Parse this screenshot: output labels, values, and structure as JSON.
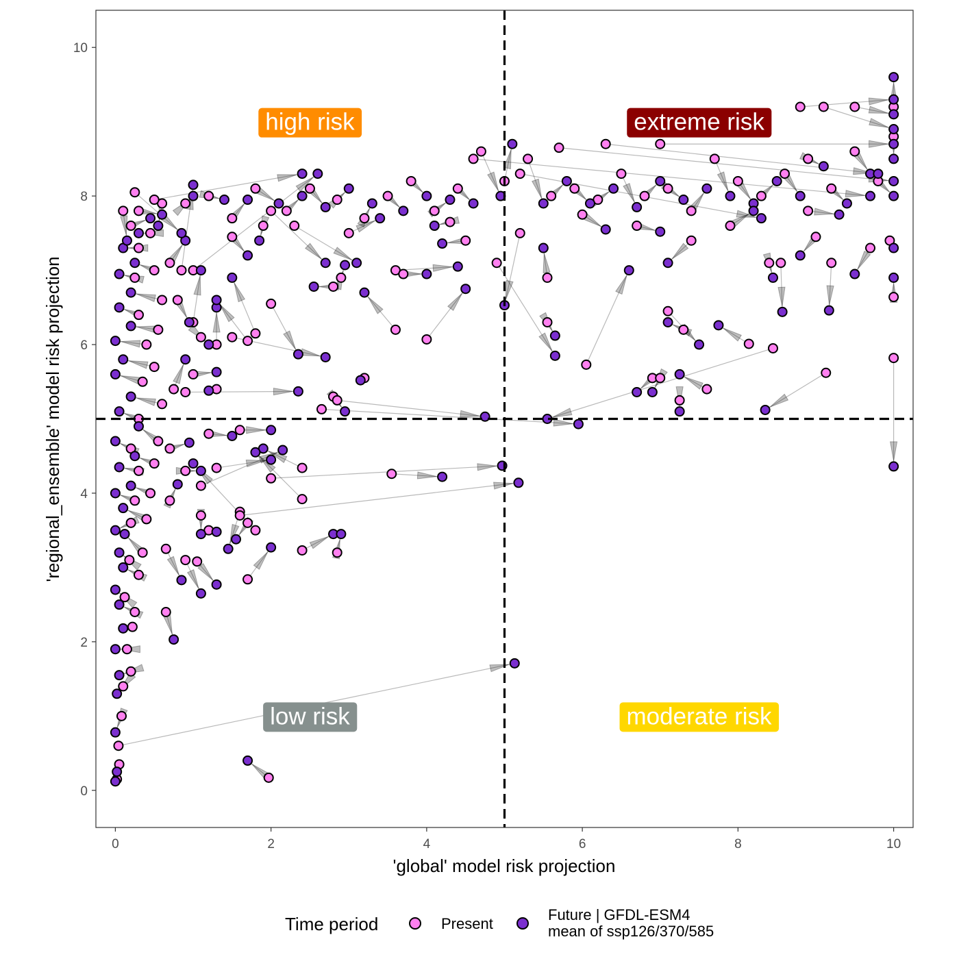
{
  "chart_data": {
    "type": "scatter",
    "xlabel": "'global' model risk projection",
    "ylabel": "'regional_ensemble' model risk projection",
    "xlim": [
      -0.25,
      10.25
    ],
    "ylim": [
      -0.5,
      10.5
    ],
    "x_ticks": [
      "0",
      "2",
      "4",
      "6",
      "8",
      "10"
    ],
    "y_ticks": [
      "0",
      "2",
      "4",
      "6",
      "8",
      "10"
    ],
    "grid": false,
    "reference_lines": {
      "x": 5,
      "y": 5,
      "style": "dashed"
    },
    "legend": {
      "title": "Time period",
      "position": "bottom",
      "entries": [
        {
          "label": "Present",
          "color": "#FF80F0"
        },
        {
          "label_line1": "Future | GFDL-ESM4",
          "label_line2": "mean of ssp126/370/585",
          "color": "#7B2FCF"
        }
      ]
    },
    "quadrant_labels": [
      {
        "text": "high risk",
        "x": 2.5,
        "y": 9.0,
        "color": "#FF8C00"
      },
      {
        "text": "extreme risk",
        "x": 7.5,
        "y": 9.0,
        "color": "#8B0000"
      },
      {
        "text": "low risk",
        "x": 2.5,
        "y": 1.0,
        "color": "#86908E"
      },
      {
        "text": "moderate risk",
        "x": 7.5,
        "y": 1.0,
        "color": "#FFD700"
      }
    ],
    "series": [
      {
        "name": "Present",
        "color": "#FF80F0"
      },
      {
        "name": "Future | GFDL-ESM4 mean of ssp126/370/585",
        "color": "#7B2FCF"
      }
    ],
    "pairs_columns": [
      "present_x",
      "present_y",
      "future_x",
      "future_y"
    ],
    "pairs": [
      [
        0.02,
        0.15,
        0.0,
        0.12
      ],
      [
        0.05,
        0.35,
        0.02,
        0.25
      ],
      [
        0.04,
        0.6,
        5.13,
        1.71
      ],
      [
        0.08,
        1.0,
        0.0,
        0.78
      ],
      [
        0.1,
        1.4,
        0.02,
        1.3
      ],
      [
        0.2,
        1.6,
        0.05,
        1.55
      ],
      [
        0.15,
        1.9,
        0.0,
        1.9
      ],
      [
        0.22,
        2.2,
        0.1,
        2.18
      ],
      [
        0.25,
        2.4,
        0.05,
        2.5
      ],
      [
        0.12,
        2.6,
        0.0,
        2.7
      ],
      [
        0.3,
        2.9,
        0.1,
        3.0
      ],
      [
        0.18,
        3.1,
        0.05,
        3.2
      ],
      [
        0.35,
        3.2,
        0.12,
        3.45
      ],
      [
        0.2,
        3.6,
        0.0,
        3.5
      ],
      [
        0.4,
        3.65,
        0.1,
        3.8
      ],
      [
        0.25,
        3.9,
        0.0,
        4.0
      ],
      [
        0.45,
        4.0,
        0.2,
        4.1
      ],
      [
        0.3,
        4.3,
        0.05,
        4.35
      ],
      [
        0.5,
        4.4,
        0.25,
        4.5
      ],
      [
        0.2,
        4.6,
        0.0,
        4.7
      ],
      [
        0.55,
        4.7,
        0.3,
        4.9
      ],
      [
        0.3,
        5.0,
        0.05,
        5.1
      ],
      [
        0.6,
        5.2,
        0.2,
        5.3
      ],
      [
        0.35,
        5.5,
        0.0,
        5.6
      ],
      [
        0.5,
        5.7,
        0.1,
        5.8
      ],
      [
        0.4,
        6.0,
        0.0,
        6.05
      ],
      [
        0.55,
        6.2,
        0.2,
        6.25
      ],
      [
        0.3,
        6.4,
        0.05,
        6.5
      ],
      [
        0.6,
        6.6,
        0.2,
        6.7
      ],
      [
        0.25,
        6.9,
        0.05,
        6.95
      ],
      [
        0.5,
        7.0,
        0.25,
        7.1
      ],
      [
        0.3,
        7.3,
        0.1,
        7.3
      ],
      [
        0.45,
        7.5,
        0.3,
        7.5
      ],
      [
        0.2,
        7.6,
        0.45,
        7.7
      ],
      [
        0.1,
        7.8,
        0.15,
        7.4
      ],
      [
        0.3,
        7.8,
        0.6,
        7.75
      ],
      [
        0.6,
        7.9,
        0.55,
        7.6
      ],
      [
        0.7,
        7.1,
        0.9,
        7.4
      ],
      [
        0.85,
        7.0,
        1.0,
        8.15
      ],
      [
        1.0,
        6.3,
        1.1,
        7.0
      ],
      [
        0.8,
        6.6,
        0.95,
        6.3
      ],
      [
        1.1,
        6.1,
        1.2,
        6.0
      ],
      [
        0.75,
        5.4,
        0.9,
        5.8
      ],
      [
        1.0,
        5.6,
        1.3,
        5.63
      ],
      [
        1.3,
        6.0,
        1.3,
        6.5
      ],
      [
        0.7,
        4.6,
        0.95,
        4.68
      ],
      [
        0.9,
        4.3,
        1.1,
        4.3
      ],
      [
        0.7,
        3.9,
        0.8,
        4.12
      ],
      [
        1.1,
        3.7,
        1.1,
        3.45
      ],
      [
        0.65,
        3.25,
        0.85,
        2.83
      ],
      [
        1.2,
        3.5,
        1.3,
        3.48
      ],
      [
        0.9,
        3.1,
        1.1,
        2.65
      ],
      [
        0.65,
        2.4,
        0.75,
        2.03
      ],
      [
        1.05,
        3.08,
        1.3,
        2.77
      ],
      [
        1.6,
        3.75,
        1.45,
        3.25
      ],
      [
        1.7,
        3.6,
        1.55,
        3.38
      ],
      [
        1.8,
        3.5,
        1.0,
        4.4
      ],
      [
        1.7,
        2.84,
        2.0,
        3.27
      ],
      [
        1.97,
        0.17,
        1.7,
        0.4
      ],
      [
        2.4,
        3.23,
        2.8,
        3.45
      ],
      [
        2.85,
        3.2,
        2.9,
        3.45
      ],
      [
        1.3,
        4.34,
        2.0,
        4.45
      ],
      [
        2.4,
        4.34,
        1.9,
        4.6
      ],
      [
        2.4,
        3.92,
        1.8,
        4.55
      ],
      [
        1.1,
        4.1,
        2.15,
        4.58
      ],
      [
        1.2,
        4.8,
        1.5,
        4.77
      ],
      [
        1.6,
        4.85,
        2.0,
        4.85
      ],
      [
        1.3,
        5.4,
        1.2,
        5.38
      ],
      [
        0.9,
        5.36,
        2.35,
        5.37
      ],
      [
        2.0,
        6.55,
        2.35,
        5.87
      ],
      [
        1.5,
        6.1,
        2.7,
        5.83
      ],
      [
        2.8,
        5.3,
        2.95,
        5.1
      ],
      [
        3.2,
        5.55,
        3.15,
        5.52
      ],
      [
        2.85,
        5.25,
        4.75,
        5.03
      ],
      [
        2.65,
        5.13,
        5.95,
        4.93
      ],
      [
        3.55,
        4.26,
        4.2,
        4.22
      ],
      [
        2.0,
        4.2,
        4.97,
        4.37
      ],
      [
        1.6,
        3.7,
        5.18,
        4.14
      ],
      [
        1.8,
        6.15,
        1.5,
        6.9
      ],
      [
        1.7,
        6.05,
        1.3,
        6.6
      ],
      [
        1.9,
        7.6,
        1.85,
        7.4
      ],
      [
        2.0,
        7.8,
        2.7,
        7.1
      ],
      [
        1.5,
        7.45,
        1.7,
        7.2
      ],
      [
        2.9,
        6.9,
        2.95,
        7.07
      ],
      [
        2.8,
        6.78,
        2.55,
        6.78
      ],
      [
        3.6,
        6.2,
        3.2,
        6.7
      ],
      [
        4.0,
        6.07,
        4.5,
        6.75
      ],
      [
        3.6,
        7.0,
        4.4,
        7.05
      ],
      [
        4.5,
        7.4,
        4.2,
        7.36
      ],
      [
        3.7,
        6.95,
        4.0,
        6.95
      ],
      [
        5.55,
        6.9,
        5.5,
        7.3
      ],
      [
        5.55,
        6.3,
        5.65,
        6.12
      ],
      [
        4.9,
        7.1,
        5.65,
        5.85
      ],
      [
        5.2,
        7.5,
        5.0,
        6.53
      ],
      [
        6.05,
        5.73,
        6.6,
        7.0
      ],
      [
        6.9,
        5.55,
        6.7,
        5.36
      ],
      [
        7.0,
        5.55,
        6.9,
        5.36
      ],
      [
        7.25,
        5.25,
        7.25,
        5.1
      ],
      [
        7.6,
        5.4,
        7.25,
        5.6
      ],
      [
        7.3,
        6.2,
        7.1,
        6.3
      ],
      [
        7.1,
        6.45,
        7.5,
        6.0
      ],
      [
        8.14,
        6.01,
        7.75,
        6.26
      ],
      [
        8.45,
        5.95,
        5.55,
        5.0
      ],
      [
        9.13,
        5.62,
        8.35,
        5.12
      ],
      [
        10,
        5.82,
        10,
        4.36
      ],
      [
        10,
        6.64,
        10,
        6.9
      ],
      [
        9.2,
        7.1,
        9.17,
        6.46
      ],
      [
        8.55,
        7.1,
        8.57,
        6.44
      ],
      [
        8.4,
        7.1,
        8.45,
        6.9
      ],
      [
        6.7,
        7.6,
        7.0,
        7.52
      ],
      [
        7.4,
        7.4,
        7.1,
        7.1
      ],
      [
        9.0,
        7.45,
        8.8,
        7.2
      ],
      [
        9.7,
        7.3,
        9.5,
        6.95
      ],
      [
        9.95,
        7.4,
        10,
        7.3
      ],
      [
        0.9,
        7.9,
        1.0,
        8.0
      ],
      [
        1.2,
        8.0,
        1.4,
        7.95
      ],
      [
        1.5,
        7.7,
        1.7,
        7.95
      ],
      [
        1.8,
        8.1,
        2.1,
        7.9
      ],
      [
        2.2,
        7.8,
        2.4,
        8.0
      ],
      [
        2.5,
        8.1,
        2.7,
        7.85
      ],
      [
        2.85,
        7.95,
        3.0,
        8.1
      ],
      [
        3.2,
        7.7,
        3.3,
        7.9
      ],
      [
        3.5,
        8.0,
        3.7,
        7.8
      ],
      [
        3.8,
        8.2,
        4.0,
        8.0
      ],
      [
        4.1,
        7.8,
        4.3,
        7.95
      ],
      [
        4.4,
        8.1,
        4.6,
        7.9
      ],
      [
        4.7,
        8.6,
        4.95,
        8.0
      ],
      [
        5.0,
        8.2,
        5.1,
        8.7
      ],
      [
        5.3,
        8.5,
        5.5,
        7.9
      ],
      [
        5.6,
        8.0,
        5.8,
        8.2
      ],
      [
        5.9,
        8.1,
        6.1,
        7.9
      ],
      [
        6.2,
        7.95,
        6.4,
        8.1
      ],
      [
        6.5,
        8.3,
        6.7,
        7.85
      ],
      [
        6.8,
        8.0,
        7.0,
        8.2
      ],
      [
        7.1,
        8.1,
        7.3,
        7.95
      ],
      [
        7.4,
        7.8,
        7.6,
        8.1
      ],
      [
        7.7,
        8.5,
        7.9,
        8.0
      ],
      [
        8.0,
        8.2,
        8.2,
        7.9
      ],
      [
        8.3,
        8.0,
        8.5,
        8.2
      ],
      [
        8.6,
        8.3,
        8.8,
        8.0
      ],
      [
        8.9,
        8.5,
        9.1,
        8.4
      ],
      [
        9.2,
        8.1,
        9.4,
        7.9
      ],
      [
        9.5,
        8.6,
        9.7,
        8.3
      ],
      [
        9.8,
        8.2,
        10,
        8.0
      ],
      [
        10,
        8.8,
        10,
        8.5
      ],
      [
        10,
        9.2,
        10,
        9.6
      ],
      [
        8.8,
        9.2,
        10,
        9.3
      ],
      [
        9.5,
        9.2,
        10,
        9.1
      ],
      [
        9.1,
        9.2,
        10,
        8.9
      ],
      [
        7.0,
        8.7,
        10,
        8.7
      ],
      [
        6.3,
        8.7,
        9.8,
        8.3
      ],
      [
        5.7,
        8.65,
        10,
        8.2
      ],
      [
        4.6,
        8.5,
        9.7,
        8.0
      ],
      [
        5.2,
        8.3,
        8.3,
        7.7
      ],
      [
        2.3,
        7.6,
        3.1,
        7.1
      ],
      [
        1.0,
        7.0,
        2.6,
        8.3
      ],
      [
        0.5,
        7.95,
        2.4,
        8.3
      ],
      [
        0.25,
        8.05,
        0.85,
        7.5
      ],
      [
        3.0,
        7.5,
        3.4,
        7.7
      ],
      [
        4.3,
        7.65,
        4.1,
        7.6
      ],
      [
        6.0,
        7.75,
        6.3,
        7.55
      ],
      [
        7.9,
        7.6,
        8.2,
        7.8
      ],
      [
        8.9,
        7.8,
        9.3,
        7.75
      ]
    ]
  }
}
